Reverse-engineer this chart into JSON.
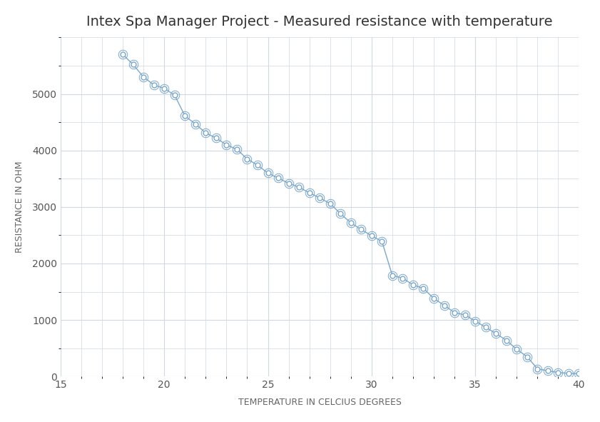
{
  "title": "Intex Spa Manager Project - Measured resistance with temperature",
  "xlabel": "TEMPERATURE IN CELCIUS DEGREES",
  "ylabel": "RESISTANCE IN OHM",
  "line_color": "#7aa7cc",
  "marker_color": "#7aa7cc",
  "background_color": "#ffffff",
  "grid_color": "#d0d8e0",
  "x": [
    18,
    18.5,
    19,
    19.5,
    20,
    20.5,
    21,
    21.5,
    22,
    22.5,
    23,
    23.5,
    24,
    24.5,
    25,
    25.5,
    26,
    26.5,
    27,
    27.5,
    28,
    28.5,
    29,
    29.5,
    30,
    30.5,
    31,
    31.5,
    32,
    32.5,
    33,
    33.5,
    34,
    34.5,
    35,
    35.5,
    36,
    36.5,
    37,
    37.5,
    38,
    38.5,
    39,
    39.5,
    40
  ],
  "y": [
    5700,
    5520,
    5300,
    5160,
    5100,
    4980,
    4610,
    4470,
    4310,
    4220,
    4100,
    4020,
    3850,
    3740,
    3600,
    3510,
    3420,
    3350,
    3250,
    3160,
    3060,
    2880,
    2720,
    2600,
    2490,
    2390,
    1790,
    1740,
    1620,
    1560,
    1380,
    1260,
    1130,
    1090,
    980,
    870,
    760,
    640,
    480,
    350,
    135,
    100,
    70,
    55,
    50
  ],
  "xlim": [
    15,
    40
  ],
  "ylim": [
    0,
    6000
  ],
  "xticks": [
    15,
    20,
    25,
    30,
    35,
    40
  ],
  "yticks": [
    0,
    1000,
    2000,
    3000,
    4000,
    5000
  ],
  "title_fontsize": 14,
  "label_fontsize": 9,
  "tick_fontsize": 10,
  "inner_marker_size": 5,
  "outer_marker_size": 9
}
